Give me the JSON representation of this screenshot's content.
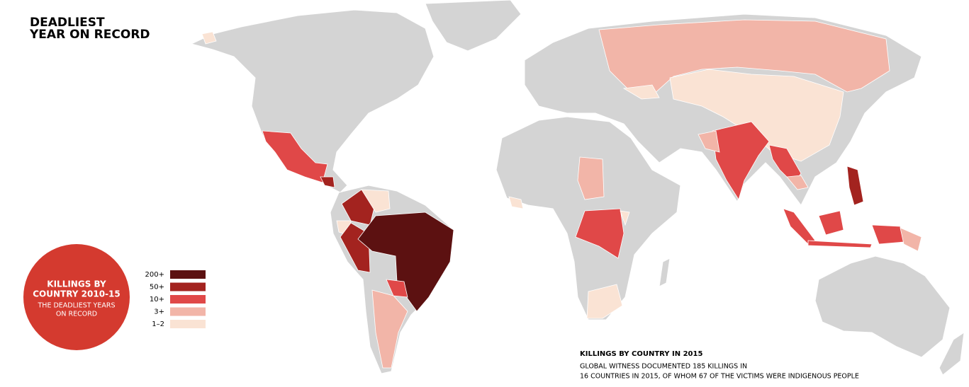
{
  "title": [
    "DEADLIEST",
    "YEAR ON RECORD"
  ],
  "badge": {
    "heading": [
      "KILLINGS BY",
      "COUNTRY 2010-15"
    ],
    "subheading": [
      "THE DEADLIEST YEARS",
      "ON RECORD"
    ]
  },
  "legend": {
    "items": [
      {
        "label": "200+",
        "color": "#5c1111"
      },
      {
        "label": "50+",
        "color": "#a3231f"
      },
      {
        "label": "10+",
        "color": "#e04848"
      },
      {
        "label": "3+",
        "color": "#f2b5a8"
      },
      {
        "label": "1–2",
        "color": "#fae3d4"
      }
    ]
  },
  "note": {
    "heading": "KILLINGS BY COUNTRY IN 2015",
    "lines": [
      "GLOBAL WITNESS DOCUMENTED 185 KILLINGS IN",
      "16 COUNTRIES IN 2015, OF WHOM 67 OF THE VICTIMS WERE INDIGENOUS PEOPLE"
    ]
  }
}
